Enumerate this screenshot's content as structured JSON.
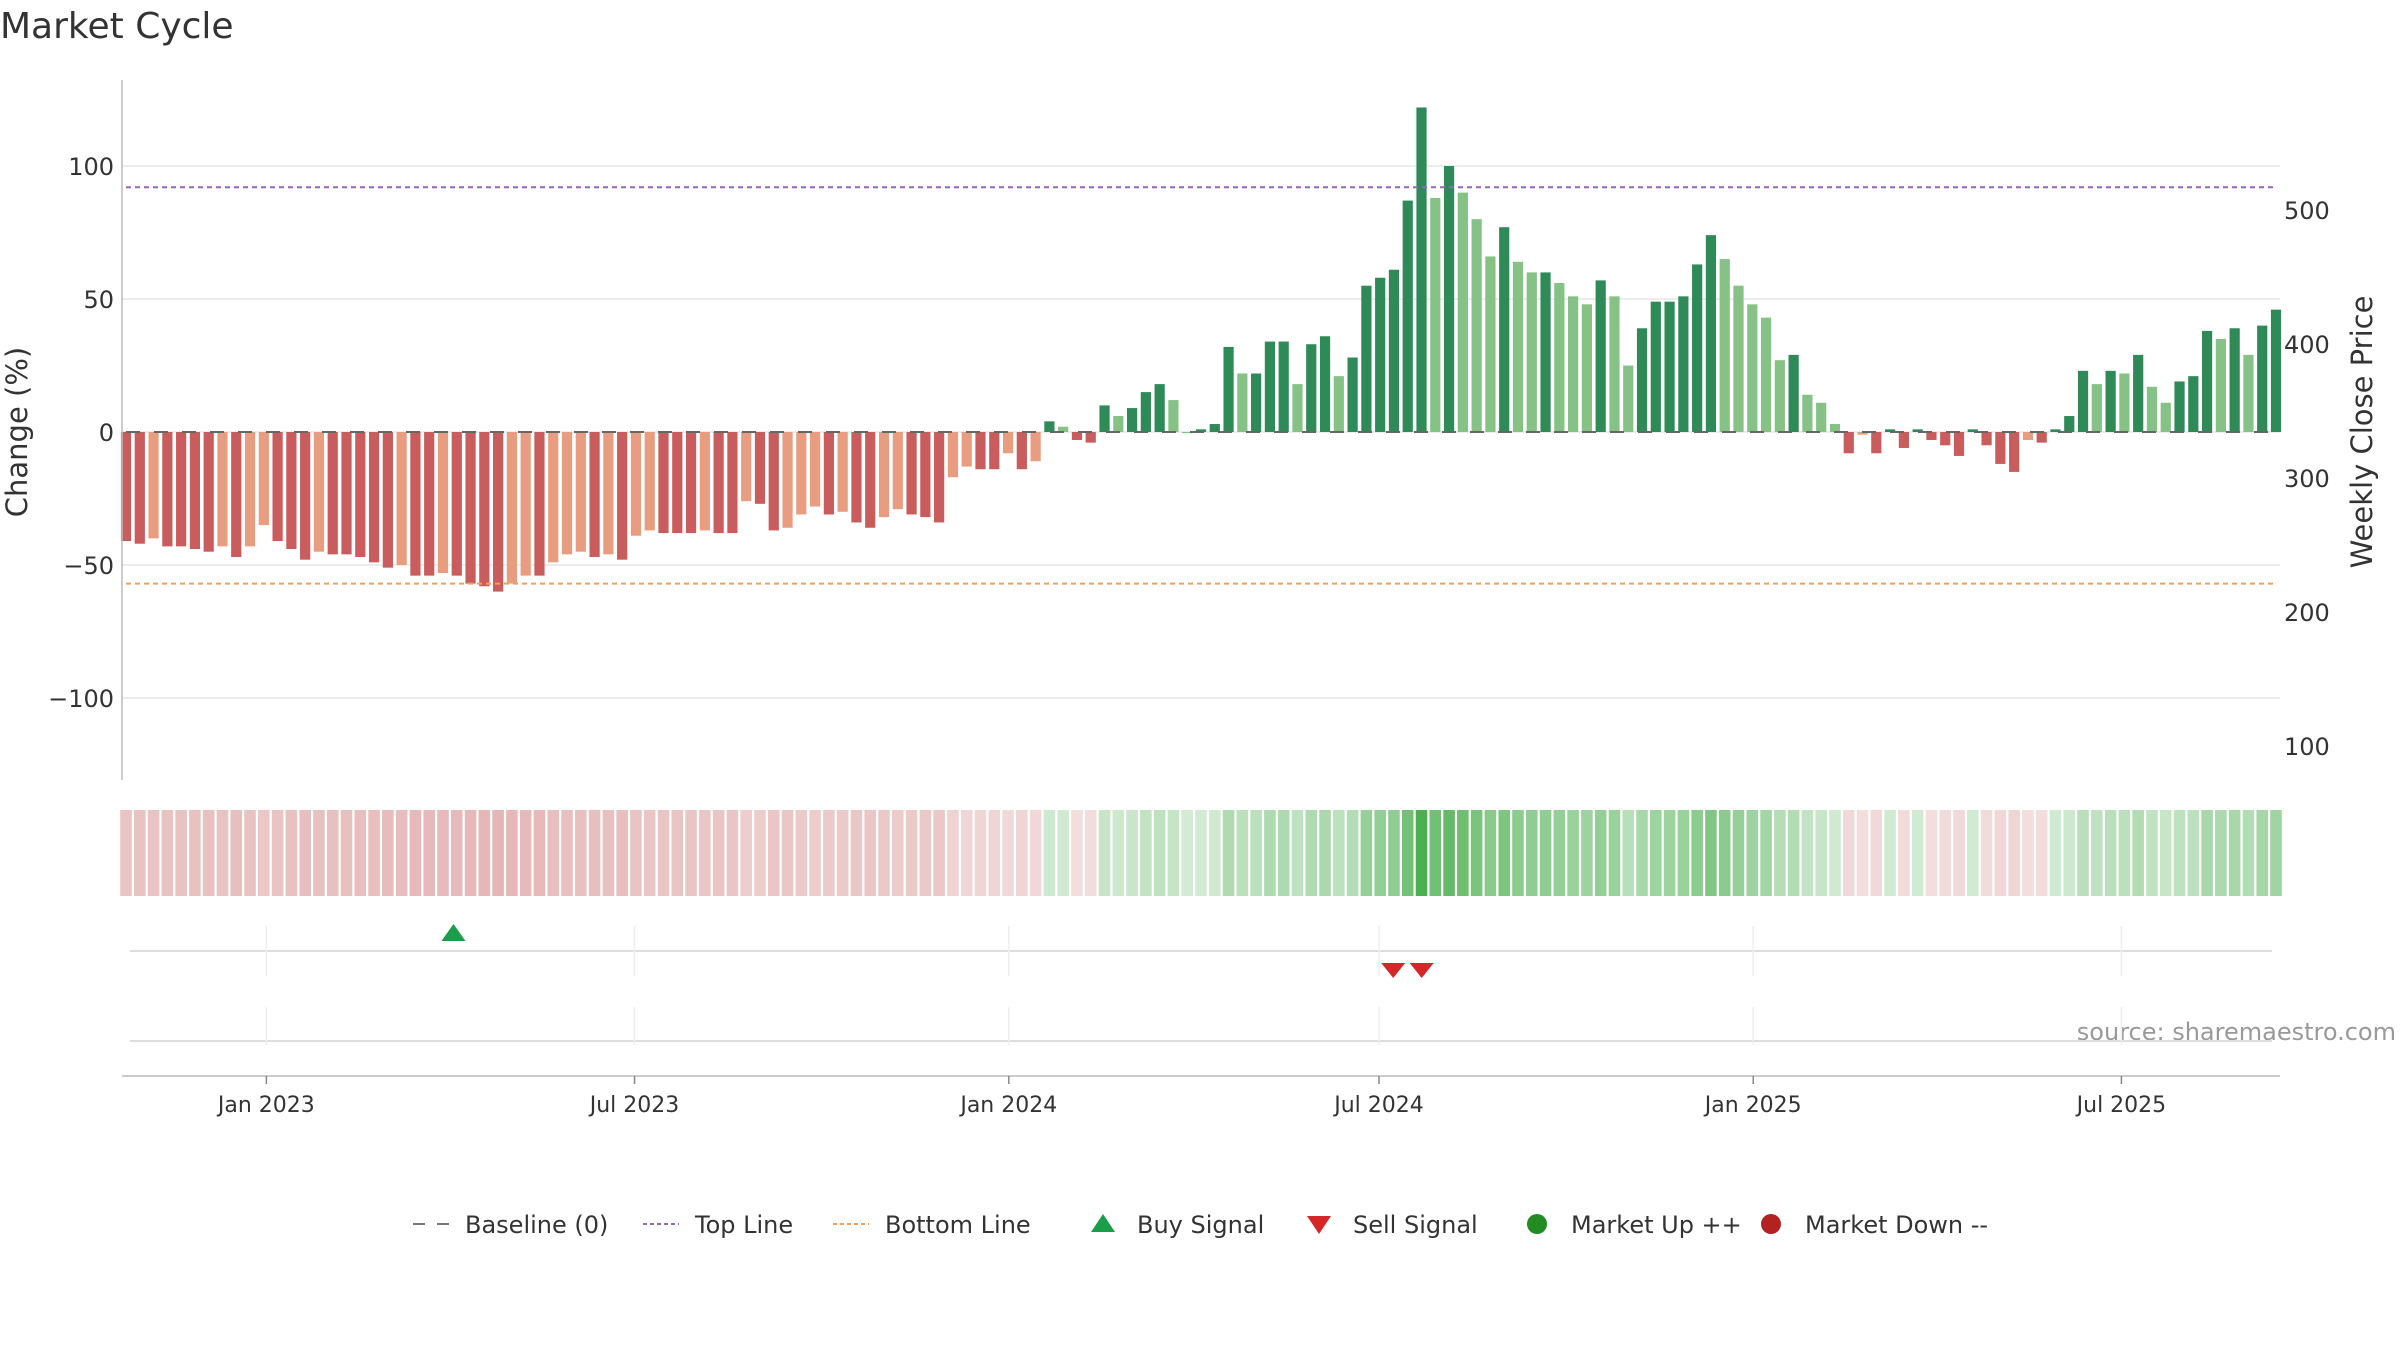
{
  "chart_data": {
    "type": "bar",
    "title": "Market Cycle",
    "ylabel": "Change (%)",
    "y2label": "Weekly Close Price",
    "ylim": [
      -132,
      132
    ],
    "y2lim": [
      70,
      585
    ],
    "yticks": [
      -100,
      -50,
      0,
      50,
      100
    ],
    "yticklabels": [
      "−100",
      "−50",
      "0",
      "50",
      "100"
    ],
    "y2ticks": [
      100,
      200,
      300,
      400,
      500
    ],
    "y2ticklabels": [
      "100",
      "200",
      "300",
      "400",
      "500"
    ],
    "x_start": "2022-10-24",
    "x_end": "2025-09-15",
    "week_step_days": 7,
    "xticks": [
      "2023-01-01",
      "2023-07-01",
      "2024-01-01",
      "2024-07-01",
      "2025-01-01",
      "2025-07-01"
    ],
    "xticklabels": [
      "Jan 2023",
      "Jul 2023",
      "Jan 2024",
      "Jul 2024",
      "Jan 2025",
      "Jul 2025"
    ],
    "top_line": 92,
    "bottom_line": -57,
    "baseline": 0,
    "grid": true,
    "legend_position": "bottom",
    "values": [
      -41,
      -42,
      -40,
      -43,
      -43,
      -44,
      -45,
      -43,
      -47,
      -43,
      -35,
      -41,
      -44,
      -48,
      -45,
      -46,
      -46,
      -47,
      -49,
      -51,
      -50,
      -54,
      -54,
      -53,
      -54,
      -57,
      -58,
      -60,
      -57,
      -54,
      -54,
      -49,
      -46,
      -45,
      -47,
      -46,
      -48,
      -39,
      -37,
      -38,
      -38,
      -38,
      -37,
      -38,
      -38,
      -26,
      -27,
      -37,
      -36,
      -31,
      -28,
      -31,
      -30,
      -34,
      -36,
      -32,
      -29,
      -31,
      -32,
      -34,
      -17,
      -13,
      -14,
      -14,
      -8,
      -14,
      -11,
      4,
      2,
      -3,
      -4,
      10,
      6,
      9,
      15,
      18,
      12,
      0,
      1,
      3,
      32,
      22,
      22,
      34,
      34,
      18,
      33,
      36,
      21,
      28,
      55,
      58,
      61,
      87,
      122,
      88,
      100,
      90,
      80,
      66,
      77,
      64,
      60,
      60,
      56,
      51,
      48,
      57,
      51,
      25,
      39,
      49,
      49,
      51,
      63,
      74,
      65,
      55,
      48,
      43,
      27,
      29,
      14,
      11,
      3,
      -8,
      -1,
      -8,
      1,
      -6,
      1,
      -3,
      -5,
      -9,
      1,
      -5,
      -12,
      -15,
      -3,
      -4,
      1,
      6,
      23,
      18,
      23,
      22,
      29,
      17,
      11,
      19,
      21,
      38,
      35,
      39,
      29,
      40,
      46
    ],
    "band_colors": {
      "deep_red": "#c95c5c",
      "light_red": "#e99d80",
      "deep_green": "#2e8b57",
      "light_green": "#86c186"
    },
    "buy_signals": [
      "2023-04-03"
    ],
    "sell_signals": [
      "2024-07-08",
      "2024-07-22"
    ],
    "source": "source: sharemaestro.com",
    "legend": [
      {
        "label": "Baseline (0)",
        "marker": "dash",
        "color": "#777777"
      },
      {
        "label": "Top Line",
        "marker": "dotted",
        "color": "#9467bd"
      },
      {
        "label": "Bottom Line",
        "marker": "dotted",
        "color": "#f0a05a"
      },
      {
        "label": "Buy Signal",
        "marker": "triangle-up",
        "color": "#1a9e4a"
      },
      {
        "label": "Sell Signal",
        "marker": "triangle-down",
        "color": "#d62728"
      },
      {
        "label": "Market Up ++",
        "marker": "circle",
        "color": "#228b22"
      },
      {
        "label": "Market Down --",
        "marker": "circle",
        "color": "#b22222"
      }
    ]
  }
}
